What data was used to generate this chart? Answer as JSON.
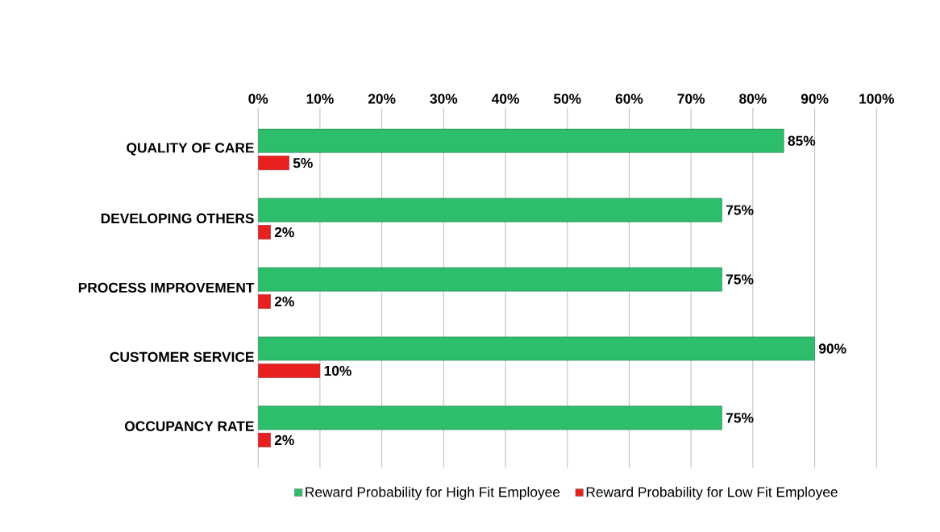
{
  "chart_data": {
    "type": "bar",
    "orientation": "horizontal",
    "categories": [
      "QUALITY OF CARE",
      "DEVELOPING OTHERS",
      "PROCESS IMPROVEMENT",
      "CUSTOMER SERVICE",
      "OCCUPANCY RATE"
    ],
    "series": [
      {
        "name": "Reward Probability for High Fit Employee",
        "color": "#2dbe6c",
        "values": [
          85,
          75,
          75,
          90,
          75
        ],
        "value_labels": [
          "85%",
          "75%",
          "75%",
          "90%",
          "75%"
        ]
      },
      {
        "name": "Reward Probability for Low Fit Employee",
        "color": "#e82020",
        "values": [
          5,
          2,
          2,
          10,
          2
        ],
        "value_labels": [
          "5%",
          "2%",
          "2%",
          "10%",
          "2%"
        ]
      }
    ],
    "xlim": [
      0,
      100
    ],
    "xticks": [
      {
        "value": 0,
        "label": "0%"
      },
      {
        "value": 10,
        "label": "10%"
      },
      {
        "value": 20,
        "label": "20%"
      },
      {
        "value": 30,
        "label": "30%"
      },
      {
        "value": 40,
        "label": "40%"
      },
      {
        "value": 50,
        "label": "50%"
      },
      {
        "value": 60,
        "label": "60%"
      },
      {
        "value": 70,
        "label": "70%"
      },
      {
        "value": 80,
        "label": "80%"
      },
      {
        "value": 90,
        "label": "90%"
      },
      {
        "value": 100,
        "label": "100%"
      }
    ],
    "grid": "x",
    "legend": "bottom"
  }
}
